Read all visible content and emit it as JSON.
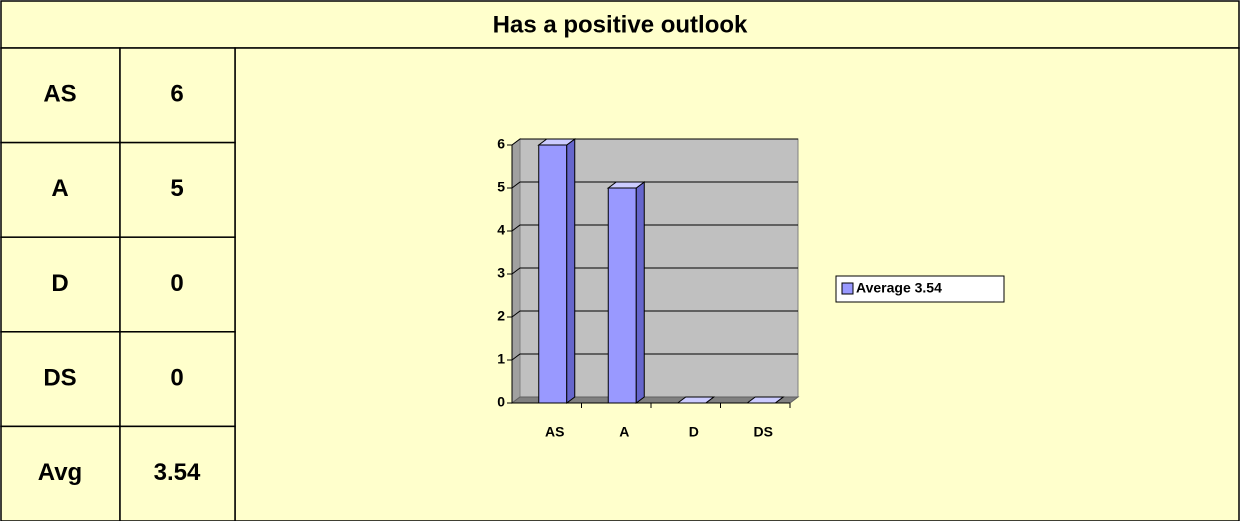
{
  "title": "Has a positive outlook",
  "table": {
    "rows": [
      [
        "AS",
        6
      ],
      [
        "A",
        5
      ],
      [
        "D",
        0
      ],
      [
        "DS",
        0
      ],
      [
        "Avg",
        3.54
      ]
    ]
  },
  "chart_data": {
    "type": "bar3d",
    "categories": [
      "AS",
      "A",
      "D",
      "DS"
    ],
    "series": [
      {
        "name": "Average 3.54",
        "color": "#9999ff",
        "values": [
          6,
          5,
          0,
          0
        ]
      }
    ],
    "ylim": [
      0,
      6
    ],
    "yticks": [
      0,
      1,
      2,
      3,
      4,
      5,
      6
    ],
    "grid": true,
    "legend": "right"
  }
}
